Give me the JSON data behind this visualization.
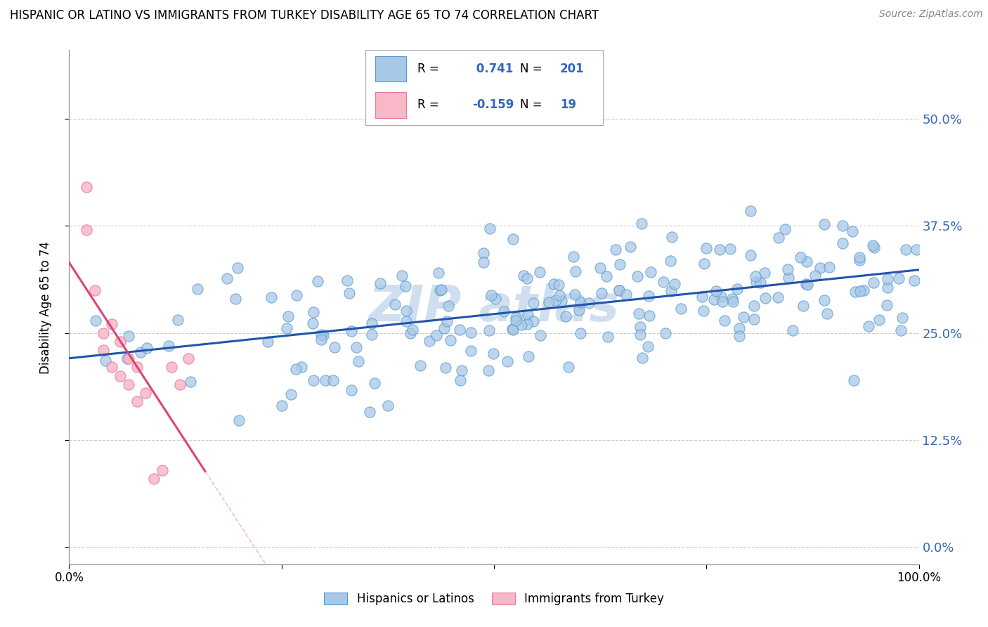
{
  "title": "HISPANIC OR LATINO VS IMMIGRANTS FROM TURKEY DISABILITY AGE 65 TO 74 CORRELATION CHART",
  "source": "Source: ZipAtlas.com",
  "ylabel": "Disability Age 65 to 74",
  "r_blue": 0.741,
  "n_blue": 201,
  "r_pink": -0.159,
  "n_pink": 19,
  "blue_color": "#a8c8e8",
  "blue_edge_color": "#5599cc",
  "blue_line_color": "#2255aa",
  "pink_color": "#f8b8c8",
  "pink_edge_color": "#e87898",
  "pink_line_color": "#dd4477",
  "pink_dash_color": "#f0b0c0",
  "background_color": "#ffffff",
  "grid_color": "#cccccc",
  "legend_label_blue": "Hispanics or Latinos",
  "legend_label_pink": "Immigrants from Turkey",
  "legend_text_color": "#3366bb",
  "watermark_color": "#d0dff0",
  "xlim": [
    0.0,
    1.0
  ],
  "ylim": [
    -0.02,
    0.58
  ],
  "yticks": [
    0.0,
    0.125,
    0.25,
    0.375,
    0.5
  ],
  "ytick_labels": [
    "0.0%",
    "12.5%",
    "25.0%",
    "37.5%",
    "50.0%"
  ]
}
